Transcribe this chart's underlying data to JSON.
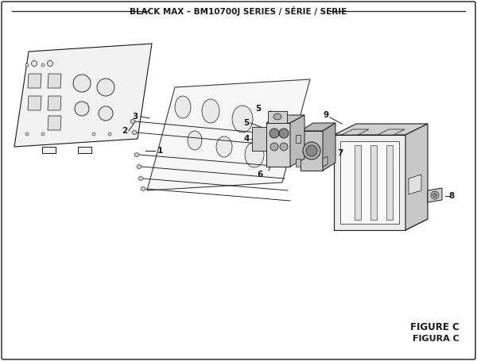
{
  "title": "BLACK MAX – BM10700J SERIES / SÉRIE / SERIE",
  "figure_label": "FIGURE C",
  "figure_label2": "FIGURA C",
  "bg_color": "#ffffff",
  "line_color": "#1a1a1a",
  "fill_light": "#f0f0f0",
  "fill_mid": "#e0e0e0",
  "fill_dark": "#c8c8c8",
  "label_fontsize": 7.5,
  "title_fontsize": 7.5,
  "figure_label_fontsize": 8.5
}
